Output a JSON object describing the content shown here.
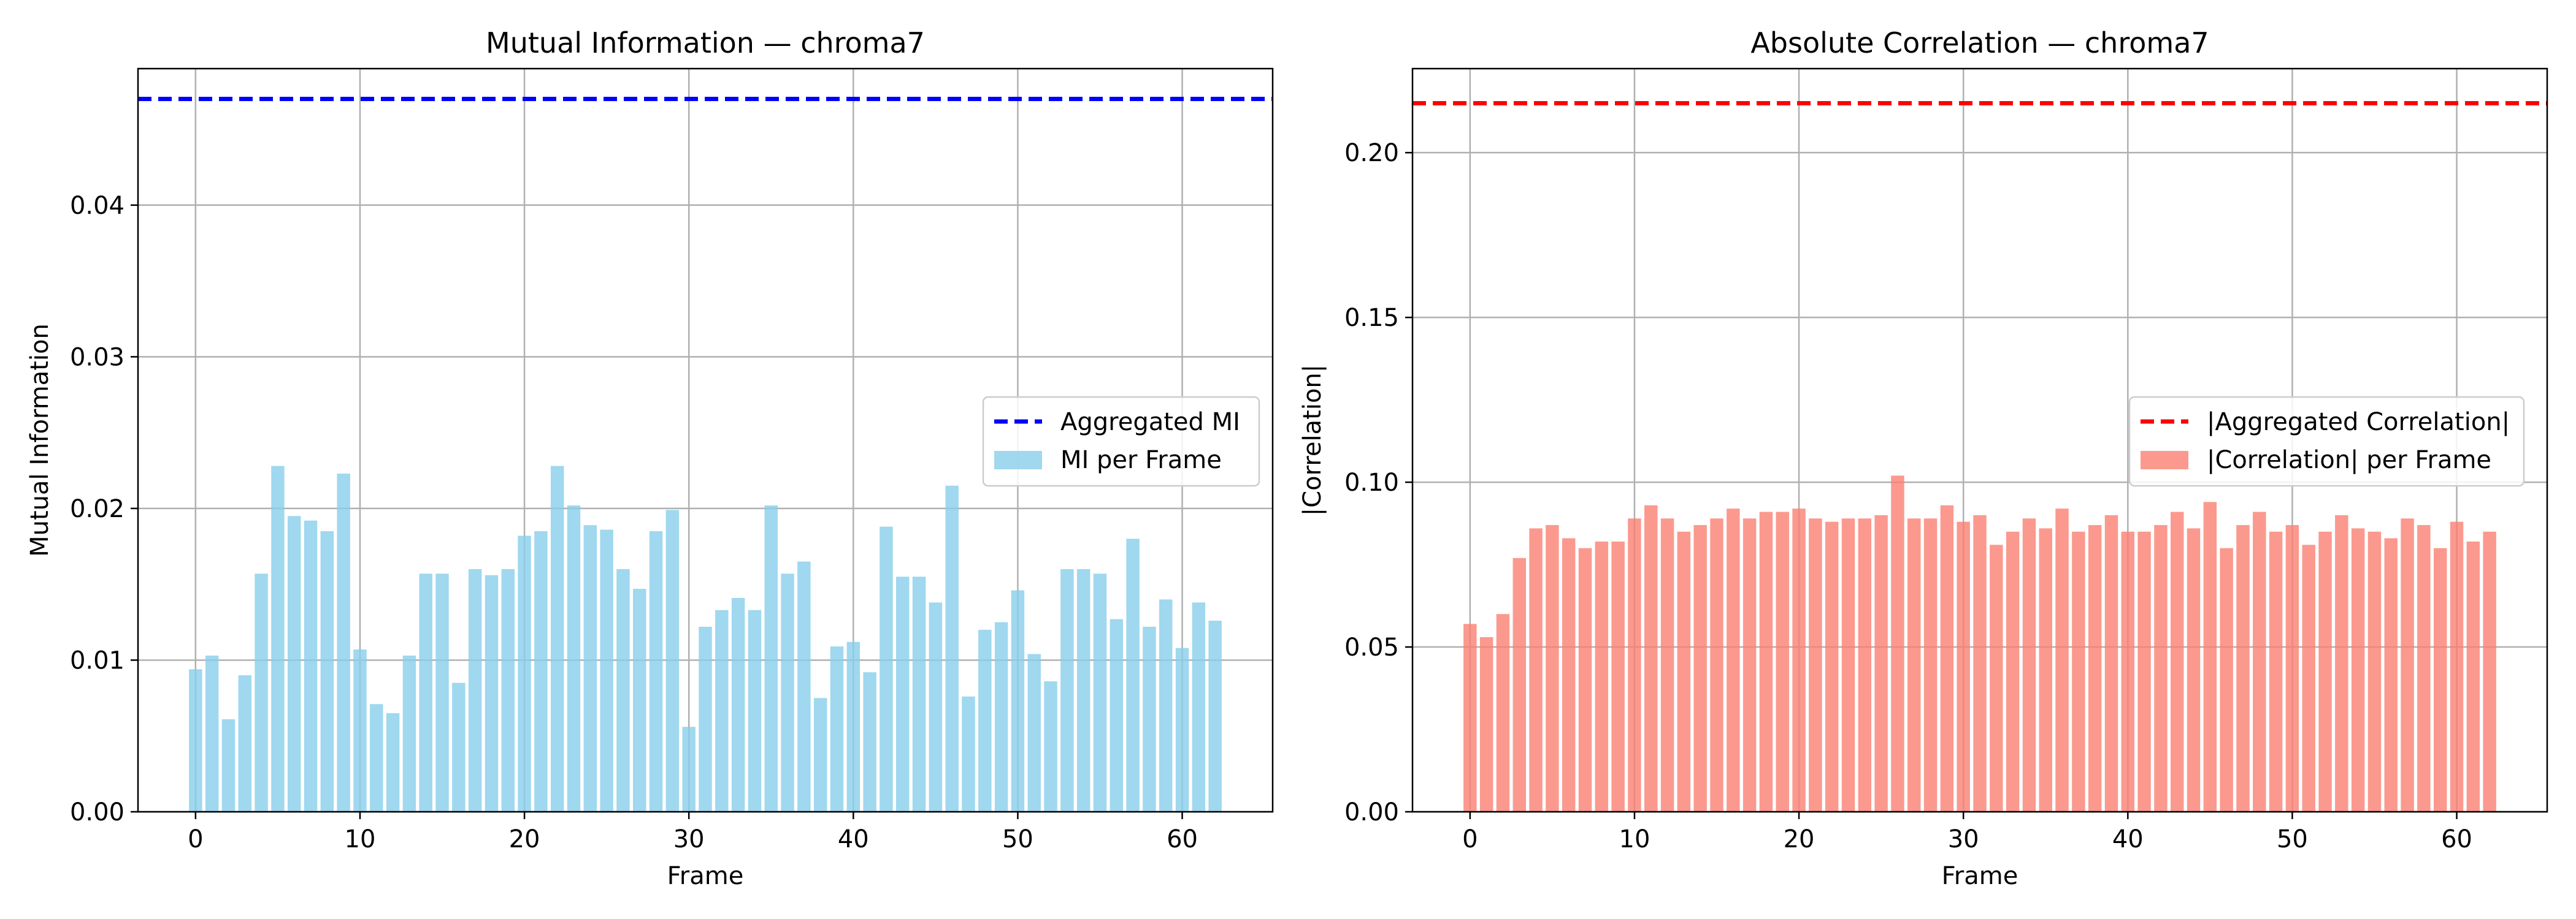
{
  "colors": {
    "mi_bar": "#87ceeb",
    "mi_line": "#0000ff",
    "corr_bar": "#fa8072",
    "corr_line": "#ff0000",
    "grid": "#b0b0b0",
    "axis": "#000000"
  },
  "chart_data": [
    {
      "type": "bar",
      "title": "Mutual Information — chroma7",
      "xlabel": "Frame",
      "ylabel": "Mutual Information",
      "xlim": [
        -3.5,
        65.5
      ],
      "ylim": [
        0,
        0.049
      ],
      "xticks": [
        0,
        10,
        20,
        30,
        40,
        50,
        60
      ],
      "yticks": [
        0,
        0.01,
        0.02,
        0.03,
        0.04
      ],
      "ytick_labels": [
        "0.00",
        "0.01",
        "0.02",
        "0.03",
        "0.04"
      ],
      "grid": true,
      "legend_position": "center-right",
      "hline": {
        "name": "Aggregated MI",
        "value": 0.047,
        "style": "dashed"
      },
      "series": [
        {
          "name": "MI per Frame",
          "x": [
            0,
            1,
            2,
            3,
            4,
            5,
            6,
            7,
            8,
            9,
            10,
            11,
            12,
            13,
            14,
            15,
            16,
            17,
            18,
            19,
            20,
            21,
            22,
            23,
            24,
            25,
            26,
            27,
            28,
            29,
            30,
            31,
            32,
            33,
            34,
            35,
            36,
            37,
            38,
            39,
            40,
            41,
            42,
            43,
            44,
            45,
            46,
            47,
            48,
            49,
            50,
            51,
            52,
            53,
            54,
            55,
            56,
            57,
            58,
            59,
            60,
            61,
            62
          ],
          "values": [
            0.0094,
            0.0103,
            0.0061,
            0.009,
            0.0157,
            0.0228,
            0.0195,
            0.0192,
            0.0185,
            0.0223,
            0.0107,
            0.0071,
            0.0065,
            0.0103,
            0.0157,
            0.0157,
            0.0085,
            0.016,
            0.0156,
            0.016,
            0.0182,
            0.0185,
            0.0228,
            0.0202,
            0.0189,
            0.0186,
            0.016,
            0.0147,
            0.0185,
            0.0199,
            0.0056,
            0.0122,
            0.0133,
            0.0141,
            0.0133,
            0.0202,
            0.0157,
            0.0165,
            0.0075,
            0.0109,
            0.0112,
            0.0092,
            0.0188,
            0.0155,
            0.0155,
            0.0138,
            0.0215,
            0.0076,
            0.012,
            0.0125,
            0.0146,
            0.0104,
            0.0086,
            0.016,
            0.016,
            0.0157,
            0.0127,
            0.018,
            0.0122,
            0.014,
            0.0108,
            0.0138,
            0.0126
          ]
        }
      ]
    },
    {
      "type": "bar",
      "title": "Absolute Correlation — chroma7",
      "xlabel": "Frame",
      "ylabel": "|Correlation|",
      "xlim": [
        -3.5,
        65.5
      ],
      "ylim": [
        0,
        0.2255
      ],
      "xticks": [
        0,
        10,
        20,
        30,
        40,
        50,
        60
      ],
      "yticks": [
        0,
        0.05,
        0.1,
        0.15,
        0.2
      ],
      "ytick_labels": [
        "0.00",
        "0.05",
        "0.10",
        "0.15",
        "0.20"
      ],
      "grid": true,
      "legend_position": "center-right",
      "hline": {
        "name": "|Aggregated Correlation|",
        "value": 0.215,
        "style": "dashed"
      },
      "series": [
        {
          "name": "|Correlation| per Frame",
          "x": [
            0,
            1,
            2,
            3,
            4,
            5,
            6,
            7,
            8,
            9,
            10,
            11,
            12,
            13,
            14,
            15,
            16,
            17,
            18,
            19,
            20,
            21,
            22,
            23,
            24,
            25,
            26,
            27,
            28,
            29,
            30,
            31,
            32,
            33,
            34,
            35,
            36,
            37,
            38,
            39,
            40,
            41,
            42,
            43,
            44,
            45,
            46,
            47,
            48,
            49,
            50,
            51,
            52,
            53,
            54,
            55,
            56,
            57,
            58,
            59,
            60,
            61,
            62
          ],
          "values": [
            0.057,
            0.053,
            0.06,
            0.077,
            0.086,
            0.087,
            0.083,
            0.08,
            0.082,
            0.082,
            0.089,
            0.093,
            0.089,
            0.085,
            0.087,
            0.089,
            0.092,
            0.089,
            0.091,
            0.091,
            0.092,
            0.089,
            0.088,
            0.089,
            0.089,
            0.09,
            0.102,
            0.089,
            0.089,
            0.093,
            0.088,
            0.09,
            0.081,
            0.085,
            0.089,
            0.086,
            0.092,
            0.085,
            0.087,
            0.09,
            0.085,
            0.085,
            0.087,
            0.091,
            0.086,
            0.094,
            0.08,
            0.087,
            0.091,
            0.085,
            0.087,
            0.081,
            0.085,
            0.09,
            0.086,
            0.085,
            0.083,
            0.089,
            0.087,
            0.08,
            0.088,
            0.082,
            0.085
          ]
        }
      ]
    }
  ]
}
